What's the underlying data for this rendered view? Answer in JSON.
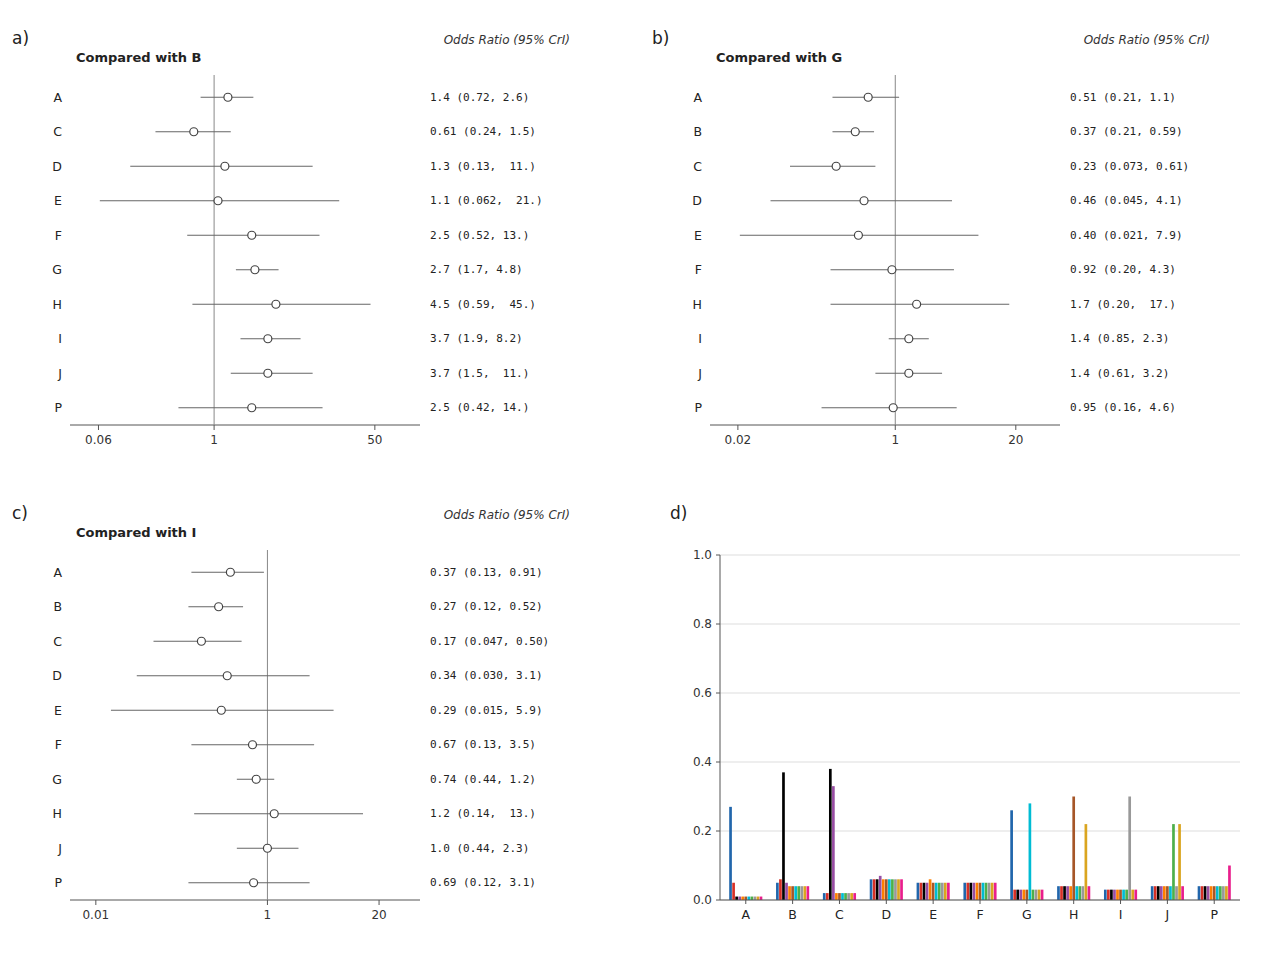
{
  "chart_data": [
    {
      "type": "forest",
      "panel_label": "a)",
      "title": "Compared with B",
      "annotation": "Odds Ratio (95% CrI)",
      "log": "x",
      "xlim": [
        0.03,
        150
      ],
      "xticks": [
        0.06,
        1,
        50
      ],
      "x_ref": 1.0,
      "categories": [
        "A",
        "C",
        "D",
        "E",
        "F",
        "G",
        "H",
        "I",
        "J",
        "P"
      ],
      "values": [
        1.4,
        0.61,
        1.3,
        1.1,
        2.5,
        2.7,
        4.5,
        3.7,
        3.7,
        2.5
      ],
      "lowers": [
        0.72,
        0.24,
        0.13,
        0.062,
        0.52,
        1.7,
        0.59,
        1.9,
        1.5,
        0.42
      ],
      "uppers": [
        2.6,
        1.5,
        11.0,
        21.0,
        13.0,
        4.8,
        45.0,
        8.2,
        11.0,
        14.0
      ],
      "value_labels": [
        "1.4 (0.72, 2.6)",
        "0.61 (0.24, 1.5)",
        "1.3 (0.13,  11.)",
        "1.1 (0.062,  21.)",
        "2.5 (0.52, 13.)",
        "2.7 (1.7, 4.8)",
        "4.5 (0.59,  45.)",
        "3.7 (1.9, 8.2)",
        "3.7 (1.5,  11.)",
        "2.5 (0.42, 14.)"
      ]
    },
    {
      "type": "forest",
      "panel_label": "b)",
      "title": "Compared with G",
      "annotation": "Odds Ratio (95% CrI)",
      "log": "x",
      "xlim": [
        0.01,
        60
      ],
      "xticks": [
        0.02,
        1,
        20
      ],
      "x_ref": 1.0,
      "categories": [
        "A",
        "B",
        "C",
        "D",
        "E",
        "F",
        "H",
        "I",
        "J",
        "P"
      ],
      "values": [
        0.51,
        0.37,
        0.23,
        0.46,
        0.4,
        0.92,
        1.7,
        1.4,
        1.4,
        0.95
      ],
      "lowers": [
        0.21,
        0.21,
        0.073,
        0.045,
        0.021,
        0.2,
        0.2,
        0.85,
        0.61,
        0.16
      ],
      "uppers": [
        1.1,
        0.59,
        0.61,
        4.1,
        7.9,
        4.3,
        17.0,
        2.3,
        3.2,
        4.6
      ],
      "value_labels": [
        "0.51 (0.21, 1.1)",
        "0.37 (0.21, 0.59)",
        "0.23 (0.073, 0.61)",
        "0.46 (0.045, 4.1)",
        "0.40 (0.021, 7.9)",
        "0.92 (0.20, 4.3)",
        "1.7 (0.20,  17.)",
        "1.4 (0.85, 2.3)",
        "1.4 (0.61, 3.2)",
        "0.95 (0.16, 4.6)"
      ]
    },
    {
      "type": "forest",
      "panel_label": "c)",
      "title": "Compared with I",
      "annotation": "Odds Ratio (95% CrI)",
      "log": "x",
      "xlim": [
        0.005,
        60
      ],
      "xticks": [
        0.01,
        1,
        20
      ],
      "x_ref": 1.0,
      "categories": [
        "A",
        "B",
        "C",
        "D",
        "E",
        "F",
        "G",
        "H",
        "J",
        "P"
      ],
      "values": [
        0.37,
        0.27,
        0.17,
        0.34,
        0.29,
        0.67,
        0.74,
        1.2,
        1.0,
        0.69
      ],
      "lowers": [
        0.13,
        0.12,
        0.047,
        0.03,
        0.015,
        0.13,
        0.44,
        0.14,
        0.44,
        0.12
      ],
      "uppers": [
        0.91,
        0.52,
        0.5,
        3.1,
        5.9,
        3.5,
        1.2,
        13.0,
        2.3,
        3.1
      ],
      "value_labels": [
        "0.37 (0.13, 0.91)",
        "0.27 (0.12, 0.52)",
        "0.17 (0.047, 0.50)",
        "0.34 (0.030, 3.1)",
        "0.29 (0.015, 5.9)",
        "0.67 (0.13, 3.5)",
        "0.74 (0.44, 1.2)",
        "1.2 (0.14,  13.)",
        "1.0 (0.44, 2.3)",
        "0.69 (0.12, 3.1)"
      ]
    },
    {
      "type": "bar",
      "panel_label": "d)",
      "categories": [
        "A",
        "B",
        "C",
        "D",
        "E",
        "F",
        "G",
        "H",
        "I",
        "J",
        "P"
      ],
      "ylim": [
        0.0,
        1.0
      ],
      "yticks": [
        {
          "value": 0.0,
          "label": "0.0"
        },
        0.2,
        0.4,
        0.6,
        0.8,
        {
          "value": 1.0,
          "label": "1.0"
        }
      ],
      "grid": true,
      "series": [
        {
          "color": "#2166ac",
          "values": [
            0.27,
            0.05,
            0.02,
            0.06,
            0.05,
            0.05,
            0.26,
            0.04,
            0.03,
            0.04,
            0.04
          ]
        },
        {
          "color": "#d73027",
          "values": [
            0.05,
            0.06,
            0.02,
            0.06,
            0.05,
            0.05,
            0.03,
            0.04,
            0.03,
            0.04,
            0.04
          ]
        },
        {
          "color": "#000000",
          "values": [
            0.01,
            0.37,
            0.38,
            0.06,
            0.05,
            0.05,
            0.03,
            0.04,
            0.03,
            0.04,
            0.04
          ]
        },
        {
          "color": "#984ea3",
          "values": [
            0.01,
            0.05,
            0.33,
            0.07,
            0.05,
            0.05,
            0.03,
            0.04,
            0.03,
            0.04,
            0.04
          ]
        },
        {
          "color": "#ff7f00",
          "values": [
            0.01,
            0.04,
            0.02,
            0.06,
            0.06,
            0.05,
            0.03,
            0.04,
            0.03,
            0.04,
            0.04
          ]
        },
        {
          "color": "#a65628",
          "values": [
            0.01,
            0.04,
            0.02,
            0.06,
            0.05,
            0.05,
            0.03,
            0.3,
            0.03,
            0.04,
            0.04
          ]
        },
        {
          "color": "#00bcd4",
          "values": [
            0.01,
            0.04,
            0.02,
            0.06,
            0.05,
            0.05,
            0.28,
            0.04,
            0.03,
            0.04,
            0.04
          ]
        },
        {
          "color": "#4daf4a",
          "values": [
            0.01,
            0.04,
            0.02,
            0.06,
            0.05,
            0.05,
            0.03,
            0.04,
            0.03,
            0.22,
            0.04
          ]
        },
        {
          "color": "#999999",
          "values": [
            0.01,
            0.04,
            0.02,
            0.06,
            0.05,
            0.05,
            0.03,
            0.04,
            0.3,
            0.04,
            0.04
          ]
        },
        {
          "color": "#daa520",
          "values": [
            0.01,
            0.04,
            0.02,
            0.06,
            0.05,
            0.05,
            0.03,
            0.22,
            0.03,
            0.22,
            0.04
          ]
        },
        {
          "color": "#e91e8c",
          "values": [
            0.01,
            0.04,
            0.02,
            0.06,
            0.05,
            0.05,
            0.03,
            0.04,
            0.03,
            0.04,
            0.1
          ]
        }
      ]
    }
  ]
}
